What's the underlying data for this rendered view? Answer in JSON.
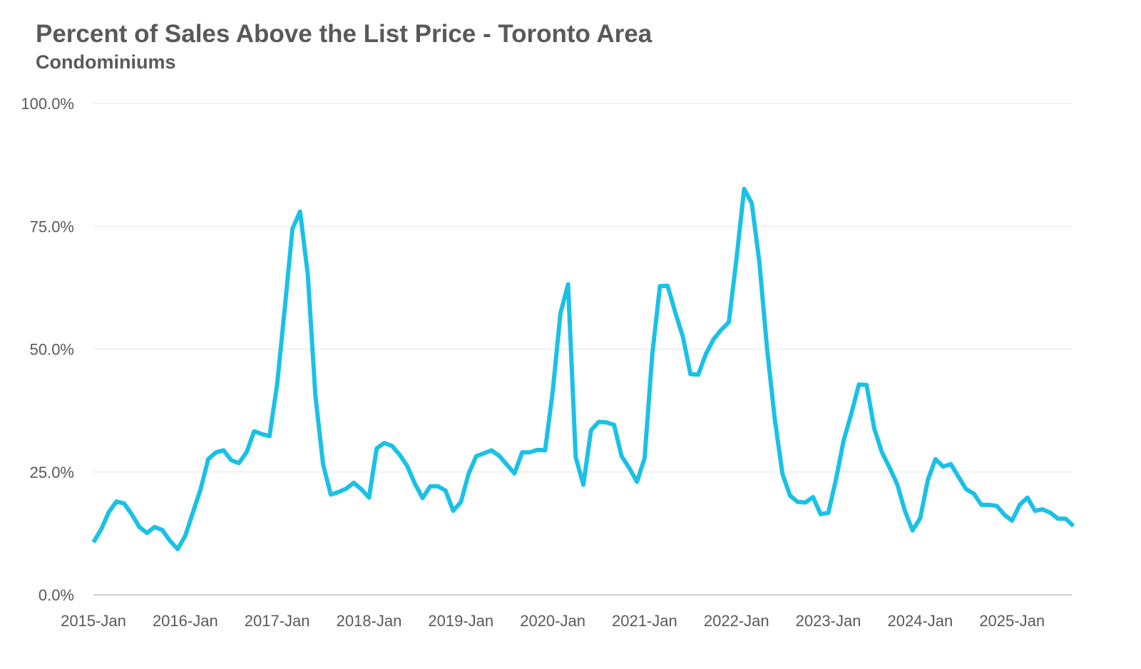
{
  "header": {
    "title": "Percent of Sales Above the List Price - Toronto Area",
    "subtitle": "Condominiums"
  },
  "chart_data": {
    "type": "line",
    "title": "Percent of Sales Above the List Price - Toronto Area",
    "subtitle": "Condominiums",
    "xlabel": "",
    "ylabel": "",
    "ylim": [
      0,
      100
    ],
    "yticks": [
      0,
      25,
      50,
      75,
      100
    ],
    "ytick_labels": [
      "0.0%",
      "25.0%",
      "50.0%",
      "75.0%",
      "100.0%"
    ],
    "xtick_labels": [
      "2015-Jan",
      "2016-Jan",
      "2017-Jan",
      "2018-Jan",
      "2019-Jan",
      "2020-Jan",
      "2021-Jan",
      "2022-Jan",
      "2023-Jan",
      "2024-Jan",
      "2025-Jan"
    ],
    "x_start": "2015-Jan",
    "grid": true,
    "legend": "none",
    "line_color": "#1ac1e6",
    "series": [
      {
        "values": [
          10.7,
          13.3,
          16.8,
          19.0,
          18.6,
          16.4,
          13.8,
          12.6,
          13.8,
          13.2,
          11.0,
          9.3,
          12.0,
          16.8,
          21.5,
          27.6,
          29.0,
          29.4,
          27.4,
          26.8,
          29.0,
          33.3,
          32.7,
          32.3,
          42.8,
          58.4,
          74.5,
          78.0,
          65.2,
          40.5,
          26.6,
          20.4,
          20.9,
          21.6,
          22.8,
          21.5,
          19.8,
          29.8,
          30.9,
          30.3,
          28.5,
          26.2,
          22.6,
          19.7,
          22.1,
          22.1,
          21.2,
          17.1,
          18.9,
          24.6,
          28.2,
          28.8,
          29.4,
          28.3,
          26.5,
          24.7,
          29.0,
          29.0,
          29.5,
          29.4,
          41.4,
          57.2,
          63.2,
          28.0,
          22.4,
          33.5,
          35.2,
          35.1,
          34.6,
          28.2,
          25.8,
          23.0,
          27.8,
          49.0,
          62.8,
          62.9,
          57.5,
          52.5,
          44.9,
          44.8,
          49.0,
          52.0,
          53.9,
          55.5,
          68.3,
          82.6,
          79.7,
          67.6,
          50.0,
          35.8,
          24.6,
          20.2,
          18.9,
          18.8,
          19.9,
          16.4,
          16.7,
          23.5,
          31.4,
          36.9,
          42.8,
          42.7,
          33.8,
          29.0,
          25.9,
          22.5,
          17.1,
          13.1,
          15.6,
          23.4,
          27.6,
          26.1,
          26.6,
          24.0,
          21.5,
          20.6,
          18.3,
          18.3,
          18.1,
          16.3,
          15.1,
          18.3,
          19.8,
          17.1,
          17.4,
          16.7,
          15.5,
          15.5,
          14.0
        ]
      }
    ]
  }
}
